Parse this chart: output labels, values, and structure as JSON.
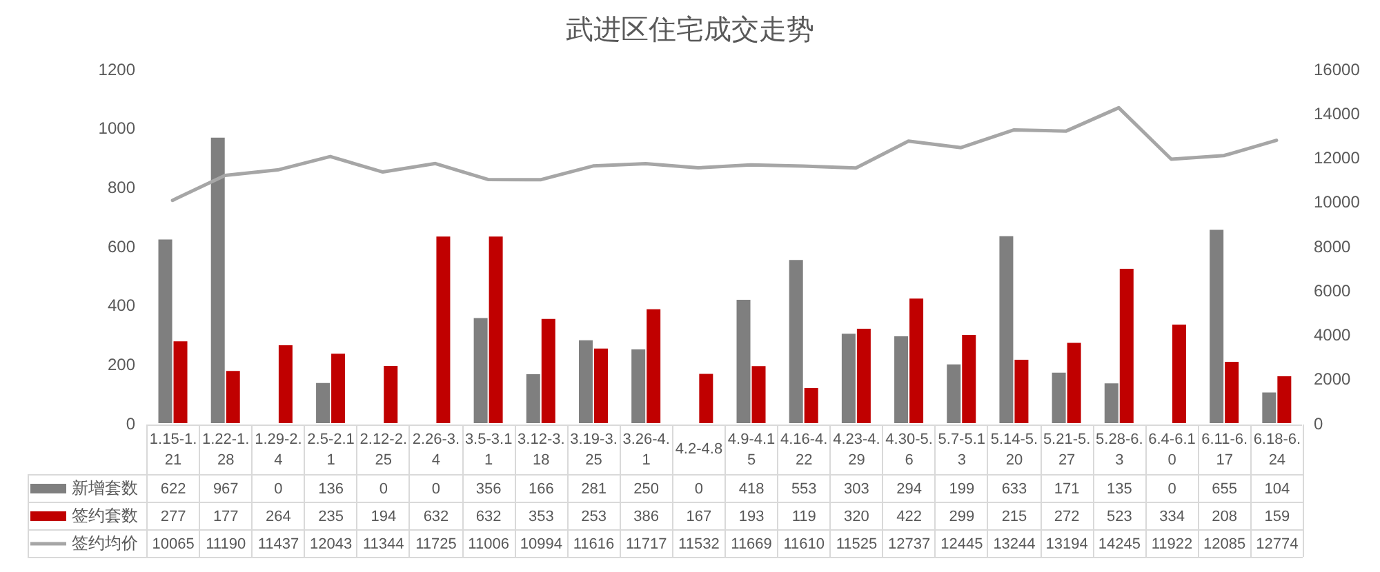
{
  "chart_data": {
    "type": "bar",
    "title": "武进区住宅成交走势",
    "categories": [
      "1.15-1.21",
      "1.22-1.28",
      "1.29-2.4",
      "2.5-2.11",
      "2.12-2.25",
      "2.26-3.4",
      "3.5-3.11",
      "3.12-3.18",
      "3.19-3.25",
      "3.26-4.1",
      "4.2-4.8",
      "4.9-4.15",
      "4.16-4.22",
      "4.23-4.29",
      "4.30-5.6",
      "5.7-5.13",
      "5.14-5.20",
      "5.21-5.27",
      "5.28-6.3",
      "6.4-6.10",
      "6.11-6.17",
      "6.18-6.24"
    ],
    "series": [
      {
        "name": "新增套数",
        "color": "#7f7f7f",
        "values": [
          622,
          967,
          0,
          136,
          0,
          0,
          356,
          166,
          281,
          250,
          0,
          418,
          553,
          303,
          294,
          199,
          633,
          171,
          135,
          0,
          655,
          104
        ]
      },
      {
        "name": "签约套数",
        "color": "#c00000",
        "values": [
          277,
          177,
          264,
          235,
          194,
          632,
          632,
          353,
          253,
          386,
          167,
          193,
          119,
          320,
          422,
          299,
          215,
          272,
          523,
          334,
          208,
          159
        ]
      },
      {
        "name": "签约均价",
        "type": "line",
        "axis": "y2",
        "color": "#a6a6a6",
        "values": [
          10065,
          11190,
          11437,
          12043,
          11344,
          11725,
          11006,
          10994,
          11616,
          11717,
          11532,
          11669,
          11610,
          11525,
          12737,
          12445,
          13244,
          13194,
          14245,
          11922,
          12085,
          12774
        ]
      }
    ],
    "ylim": [
      0,
      1200
    ],
    "yticks": [
      0,
      200,
      400,
      600,
      800,
      1000,
      1200
    ],
    "y2lim": [
      0,
      16000
    ],
    "y2ticks": [
      0,
      2000,
      4000,
      6000,
      8000,
      10000,
      12000,
      14000,
      16000
    ],
    "legend": "bottom",
    "marker": "none",
    "line_style": "solid",
    "data_labels": true
  }
}
